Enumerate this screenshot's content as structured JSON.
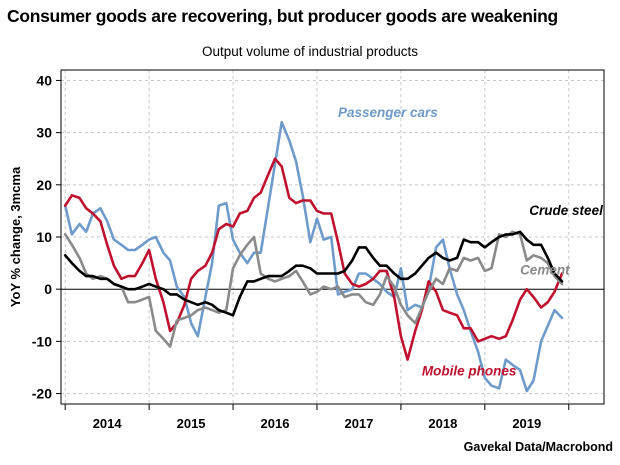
{
  "title": "Consumer goods are recovering, but producer goods are weakening",
  "subtitle": "Output volume of industrial products",
  "source": "Gavekal Data/Macrobond",
  "chart_data": {
    "type": "line",
    "ylabel": "YoY % change, 3mcma",
    "xlabel": "",
    "ylim": [
      -22,
      42
    ],
    "xlim": [
      2013.45,
      2019.92
    ],
    "yticks": [
      -20,
      -10,
      0,
      10,
      20,
      30,
      40
    ],
    "year_labels": [
      {
        "label": "2014",
        "x": 2014.0
      },
      {
        "label": "2015",
        "x": 2015.0
      },
      {
        "label": "2016",
        "x": 2016.0
      },
      {
        "label": "2017",
        "x": 2017.0
      },
      {
        "label": "2018",
        "x": 2018.0
      },
      {
        "label": "2019",
        "x": 2019.0
      }
    ],
    "year_boundaries": [
      2013.5,
      2014.5,
      2015.5,
      2016.5,
      2017.5,
      2018.5,
      2019.5
    ],
    "grid": true,
    "series": [
      {
        "name": "Passenger cars",
        "color": "#6f9bcb",
        "points": [
          [
            2013.5,
            16
          ],
          [
            2013.58,
            10.5
          ],
          [
            2013.67,
            12.5
          ],
          [
            2013.75,
            11
          ],
          [
            2013.83,
            14.5
          ],
          [
            2013.92,
            15.5
          ],
          [
            2014.0,
            13
          ],
          [
            2014.08,
            9.5
          ],
          [
            2014.17,
            8.5
          ],
          [
            2014.25,
            7.5
          ],
          [
            2014.33,
            7.5
          ],
          [
            2014.42,
            8.5
          ],
          [
            2014.5,
            9.5
          ],
          [
            2014.58,
            10
          ],
          [
            2014.67,
            7
          ],
          [
            2014.75,
            5.5
          ],
          [
            2014.83,
            0.5
          ],
          [
            2014.92,
            -1.5
          ],
          [
            2015.0,
            -6.5
          ],
          [
            2015.08,
            -9
          ],
          [
            2015.17,
            -1.5
          ],
          [
            2015.25,
            5
          ],
          [
            2015.33,
            16
          ],
          [
            2015.42,
            16.5
          ],
          [
            2015.5,
            9.5
          ],
          [
            2015.58,
            7
          ],
          [
            2015.67,
            5
          ],
          [
            2015.75,
            7
          ],
          [
            2015.83,
            7
          ],
          [
            2015.92,
            16
          ],
          [
            2016.0,
            24
          ],
          [
            2016.08,
            32
          ],
          [
            2016.17,
            28.5
          ],
          [
            2016.25,
            24.5
          ],
          [
            2016.33,
            18
          ],
          [
            2016.42,
            9
          ],
          [
            2016.5,
            13.5
          ],
          [
            2016.58,
            9.5
          ],
          [
            2016.67,
            10
          ],
          [
            2016.75,
            -1
          ],
          [
            2016.83,
            -0.5
          ],
          [
            2016.92,
            0
          ],
          [
            2017.0,
            3
          ],
          [
            2017.08,
            3
          ],
          [
            2017.17,
            2
          ],
          [
            2017.25,
            1
          ],
          [
            2017.33,
            -0.5
          ],
          [
            2017.42,
            -1.5
          ],
          [
            2017.5,
            4
          ],
          [
            2017.58,
            -4
          ],
          [
            2017.67,
            -3
          ],
          [
            2017.75,
            -3.5
          ],
          [
            2017.83,
            0
          ],
          [
            2017.92,
            8
          ],
          [
            2018.0,
            9.5
          ],
          [
            2018.08,
            4
          ],
          [
            2018.17,
            -1
          ],
          [
            2018.25,
            -4
          ],
          [
            2018.33,
            -8
          ],
          [
            2018.42,
            -12
          ],
          [
            2018.5,
            -17
          ],
          [
            2018.58,
            -18.5
          ],
          [
            2018.67,
            -19
          ],
          [
            2018.75,
            -13.5
          ],
          [
            2018.83,
            -14.5
          ],
          [
            2018.92,
            -15.5
          ],
          [
            2019.0,
            -19.5
          ],
          [
            2019.08,
            -17.5
          ],
          [
            2019.17,
            -10
          ],
          [
            2019.25,
            -7
          ],
          [
            2019.33,
            -4
          ],
          [
            2019.42,
            -5.5
          ]
        ]
      },
      {
        "name": "Mobile phones",
        "color": "#c0112f",
        "points": [
          [
            2013.5,
            16
          ],
          [
            2013.58,
            18
          ],
          [
            2013.67,
            17.5
          ],
          [
            2013.75,
            15.5
          ],
          [
            2013.83,
            14.5
          ],
          [
            2013.92,
            13
          ],
          [
            2014.0,
            8.5
          ],
          [
            2014.08,
            4.5
          ],
          [
            2014.17,
            2
          ],
          [
            2014.25,
            2.5
          ],
          [
            2014.33,
            2.5
          ],
          [
            2014.42,
            5
          ],
          [
            2014.5,
            7.5
          ],
          [
            2014.58,
            2
          ],
          [
            2014.67,
            -2.5
          ],
          [
            2014.75,
            -8
          ],
          [
            2014.83,
            -6.5
          ],
          [
            2014.92,
            -3
          ],
          [
            2015.0,
            2
          ],
          [
            2015.08,
            3.5
          ],
          [
            2015.17,
            4.5
          ],
          [
            2015.25,
            7
          ],
          [
            2015.33,
            11.5
          ],
          [
            2015.42,
            12.5
          ],
          [
            2015.5,
            12
          ],
          [
            2015.58,
            14.5
          ],
          [
            2015.67,
            15
          ],
          [
            2015.75,
            17.5
          ],
          [
            2015.83,
            18.5
          ],
          [
            2015.92,
            22
          ],
          [
            2016.0,
            25
          ],
          [
            2016.08,
            23.5
          ],
          [
            2016.17,
            17.5
          ],
          [
            2016.25,
            16.5
          ],
          [
            2016.33,
            17
          ],
          [
            2016.42,
            17
          ],
          [
            2016.5,
            15
          ],
          [
            2016.58,
            14.5
          ],
          [
            2016.67,
            14.5
          ],
          [
            2016.75,
            9
          ],
          [
            2016.83,
            3
          ],
          [
            2016.92,
            1
          ],
          [
            2017.0,
            0.5
          ],
          [
            2017.08,
            1
          ],
          [
            2017.17,
            2
          ],
          [
            2017.25,
            3.5
          ],
          [
            2017.33,
            3.5
          ],
          [
            2017.42,
            -1.5
          ],
          [
            2017.5,
            -9
          ],
          [
            2017.58,
            -13.5
          ],
          [
            2017.67,
            -8
          ],
          [
            2017.75,
            -4
          ],
          [
            2017.83,
            1.5
          ],
          [
            2017.92,
            -0.5
          ],
          [
            2018.0,
            -4
          ],
          [
            2018.08,
            -4.5
          ],
          [
            2018.17,
            -5
          ],
          [
            2018.25,
            -7.5
          ],
          [
            2018.33,
            -7.5
          ],
          [
            2018.42,
            -10
          ],
          [
            2018.5,
            -9.5
          ],
          [
            2018.58,
            -9
          ],
          [
            2018.67,
            -9.5
          ],
          [
            2018.75,
            -9
          ],
          [
            2018.83,
            -6
          ],
          [
            2018.92,
            -2
          ],
          [
            2019.0,
            0
          ],
          [
            2019.08,
            -1.5
          ],
          [
            2019.17,
            -3.5
          ],
          [
            2019.25,
            -2.5
          ],
          [
            2019.33,
            -0.5
          ],
          [
            2019.42,
            3
          ]
        ]
      },
      {
        "name": "Cement",
        "color": "#8a8a8a",
        "points": [
          [
            2013.5,
            10.5
          ],
          [
            2013.58,
            8.5
          ],
          [
            2013.67,
            6
          ],
          [
            2013.75,
            3
          ],
          [
            2013.83,
            2
          ],
          [
            2013.92,
            2.5
          ],
          [
            2014.0,
            2
          ],
          [
            2014.08,
            1
          ],
          [
            2014.17,
            0.5
          ],
          [
            2014.25,
            -2.5
          ],
          [
            2014.33,
            -2.5
          ],
          [
            2014.42,
            -2
          ],
          [
            2014.5,
            -1.5
          ],
          [
            2014.58,
            -8
          ],
          [
            2014.67,
            -9.5
          ],
          [
            2014.75,
            -11
          ],
          [
            2014.83,
            -6
          ],
          [
            2014.92,
            -5.5
          ],
          [
            2015.0,
            -5
          ],
          [
            2015.08,
            -4
          ],
          [
            2015.17,
            -3.5
          ],
          [
            2015.25,
            -4
          ],
          [
            2015.33,
            -4.5
          ],
          [
            2015.42,
            -4
          ],
          [
            2015.5,
            4
          ],
          [
            2015.58,
            6.5
          ],
          [
            2015.67,
            8.5
          ],
          [
            2015.75,
            10
          ],
          [
            2015.83,
            3
          ],
          [
            2015.92,
            2
          ],
          [
            2016.0,
            1.5
          ],
          [
            2016.08,
            2
          ],
          [
            2016.17,
            2.5
          ],
          [
            2016.25,
            3.5
          ],
          [
            2016.33,
            1.5
          ],
          [
            2016.42,
            -1
          ],
          [
            2016.5,
            -0.5
          ],
          [
            2016.58,
            0.5
          ],
          [
            2016.67,
            0
          ],
          [
            2016.75,
            0.5
          ],
          [
            2016.83,
            -1.5
          ],
          [
            2016.92,
            -1
          ],
          [
            2017.0,
            -1
          ],
          [
            2017.08,
            -2.5
          ],
          [
            2017.17,
            -3
          ],
          [
            2017.25,
            -1
          ],
          [
            2017.33,
            2.5
          ],
          [
            2017.42,
            0.5
          ],
          [
            2017.5,
            -3
          ],
          [
            2017.58,
            -5
          ],
          [
            2017.67,
            -6.5
          ],
          [
            2017.75,
            -3.5
          ],
          [
            2017.83,
            -0.5
          ],
          [
            2017.92,
            2
          ],
          [
            2018.0,
            1
          ],
          [
            2018.08,
            4
          ],
          [
            2018.17,
            3.5
          ],
          [
            2018.25,
            6
          ],
          [
            2018.33,
            5.5
          ],
          [
            2018.42,
            6
          ],
          [
            2018.5,
            3.5
          ],
          [
            2018.58,
            4
          ],
          [
            2018.67,
            10.5
          ],
          [
            2018.75,
            10
          ],
          [
            2018.83,
            11
          ],
          [
            2018.92,
            10.5
          ],
          [
            2019.0,
            5.5
          ],
          [
            2019.08,
            6.5
          ],
          [
            2019.17,
            6
          ],
          [
            2019.25,
            5
          ],
          [
            2019.33,
            2.5
          ],
          [
            2019.42,
            1
          ]
        ]
      },
      {
        "name": "Crude steel",
        "color": "#000000",
        "points": [
          [
            2013.5,
            6.5
          ],
          [
            2013.58,
            5
          ],
          [
            2013.67,
            3.5
          ],
          [
            2013.75,
            2.5
          ],
          [
            2013.83,
            2.5
          ],
          [
            2013.92,
            2
          ],
          [
            2014.0,
            2
          ],
          [
            2014.08,
            1
          ],
          [
            2014.17,
            0.5
          ],
          [
            2014.25,
            0
          ],
          [
            2014.33,
            0
          ],
          [
            2014.42,
            0.5
          ],
          [
            2014.5,
            1
          ],
          [
            2014.58,
            0.5
          ],
          [
            2014.67,
            0
          ],
          [
            2014.75,
            -1
          ],
          [
            2014.83,
            -1
          ],
          [
            2014.92,
            -2
          ],
          [
            2015.0,
            -2.5
          ],
          [
            2015.08,
            -3
          ],
          [
            2015.17,
            -2.5
          ],
          [
            2015.25,
            -3
          ],
          [
            2015.33,
            -4
          ],
          [
            2015.42,
            -4.5
          ],
          [
            2015.5,
            -5
          ],
          [
            2015.58,
            -1.5
          ],
          [
            2015.67,
            1.5
          ],
          [
            2015.75,
            1.5
          ],
          [
            2015.83,
            2
          ],
          [
            2015.92,
            2.5
          ],
          [
            2016.0,
            2.5
          ],
          [
            2016.08,
            2.5
          ],
          [
            2016.17,
            3.5
          ],
          [
            2016.25,
            4.5
          ],
          [
            2016.33,
            4.5
          ],
          [
            2016.42,
            4
          ],
          [
            2016.5,
            3
          ],
          [
            2016.58,
            3
          ],
          [
            2016.67,
            3
          ],
          [
            2016.75,
            3
          ],
          [
            2016.83,
            3.5
          ],
          [
            2016.92,
            5.5
          ],
          [
            2017.0,
            8
          ],
          [
            2017.08,
            8
          ],
          [
            2017.17,
            6
          ],
          [
            2017.25,
            4.5
          ],
          [
            2017.33,
            4.5
          ],
          [
            2017.42,
            3
          ],
          [
            2017.5,
            2
          ],
          [
            2017.58,
            2
          ],
          [
            2017.67,
            3
          ],
          [
            2017.75,
            4.5
          ],
          [
            2017.83,
            6
          ],
          [
            2017.92,
            7
          ],
          [
            2018.0,
            6
          ],
          [
            2018.08,
            5.5
          ],
          [
            2018.17,
            6
          ],
          [
            2018.25,
            9.5
          ],
          [
            2018.33,
            9
          ],
          [
            2018.42,
            9
          ],
          [
            2018.5,
            8
          ],
          [
            2018.58,
            9
          ],
          [
            2018.67,
            10
          ],
          [
            2018.75,
            10.5
          ],
          [
            2018.83,
            10.5
          ],
          [
            2018.92,
            11
          ],
          [
            2019.0,
            9.5
          ],
          [
            2019.08,
            8.5
          ],
          [
            2019.17,
            8.5
          ],
          [
            2019.25,
            6
          ],
          [
            2019.33,
            3
          ],
          [
            2019.42,
            1.5
          ]
        ]
      }
    ],
    "annotations": [
      {
        "text": "Passenger cars",
        "series": "Passenger cars",
        "x": 2016.75,
        "y": 33,
        "style": "italic-bold"
      },
      {
        "text": "Crude steel",
        "series": "Crude steel",
        "x": 2019.03,
        "y": 14.2,
        "style": "italic-bold"
      },
      {
        "text": "Cement",
        "series": "Cement",
        "x": 2018.92,
        "y": 2.8,
        "style": "italic-bold"
      },
      {
        "text": "Mobile phones",
        "series": "Mobile phones",
        "x": 2017.75,
        "y": -16.5,
        "style": "italic-bold"
      }
    ]
  }
}
